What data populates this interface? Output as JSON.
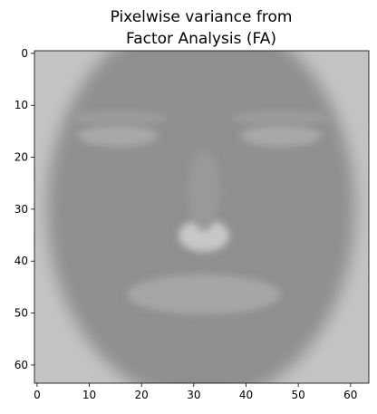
{
  "chart_data": {
    "type": "image",
    "title_lines": [
      "Pixelwise variance from",
      "Factor Analysis (FA)"
    ],
    "xlim": [
      -0.5,
      63.5
    ],
    "ylim": [
      63.5,
      -0.5
    ],
    "xticks": [
      0,
      10,
      20,
      30,
      40,
      50,
      60
    ],
    "yticks": [
      0,
      10,
      20,
      30,
      40,
      50,
      60
    ],
    "colormap": "gray"
  }
}
